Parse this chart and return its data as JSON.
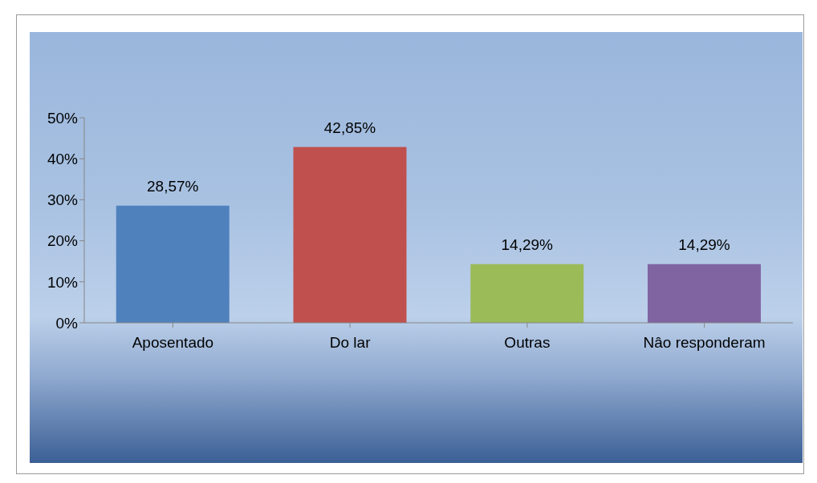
{
  "chart_data": {
    "type": "bar",
    "categories": [
      "Aposentado",
      "Do lar",
      "Outras",
      "Nâo responderam"
    ],
    "values": [
      28.57,
      42.85,
      14.29,
      14.29
    ],
    "colors": [
      "#4f81bd",
      "#c0504d",
      "#9bbb59",
      "#8064a2"
    ],
    "value_labels": [
      "28,57%",
      "42,85%",
      "14,29%",
      "14,29%"
    ],
    "ylim": [
      0,
      50
    ],
    "yticks": [
      {
        "value": 0,
        "label": "0%"
      },
      {
        "value": 10,
        "label": "10%"
      },
      {
        "value": 20,
        "label": "20%"
      },
      {
        "value": 30,
        "label": "30%"
      },
      {
        "value": 40,
        "label": "40%"
      },
      {
        "value": 50,
        "label": "50%"
      }
    ],
    "grid": false,
    "legend": false
  }
}
